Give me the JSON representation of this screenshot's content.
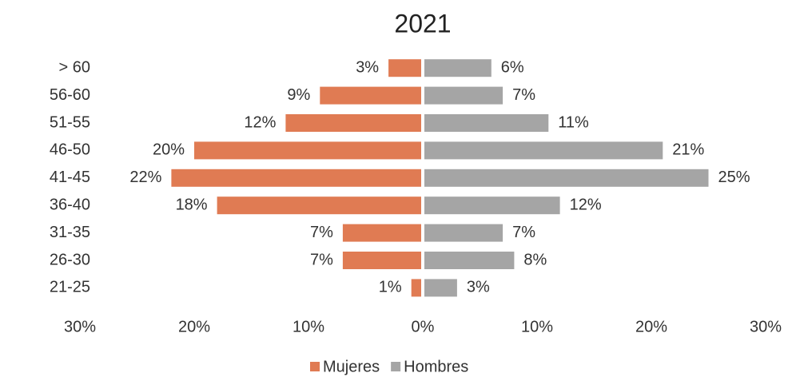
{
  "chart_data": {
    "type": "pyramid",
    "title": "2021",
    "categories": [
      "> 60",
      "56-60",
      "51-55",
      "46-50",
      "41-45",
      "36-40",
      "31-35",
      "26-30",
      "21-25"
    ],
    "series": [
      {
        "name": "Mujeres",
        "color": "#e07b53",
        "side": "left",
        "values": [
          3,
          9,
          12,
          20,
          22,
          18,
          7,
          7,
          1
        ],
        "value_labels": [
          "3%",
          "9%",
          "12%",
          "20%",
          "22%",
          "18%",
          "7%",
          "7%",
          "1%"
        ]
      },
      {
        "name": "Hombres",
        "color": "#a5a5a5",
        "side": "right",
        "values": [
          6,
          7,
          11,
          21,
          25,
          12,
          7,
          8,
          3
        ],
        "value_labels": [
          "6%",
          "7%",
          "11%",
          "21%",
          "25%",
          "12%",
          "7%",
          "8%",
          "3%"
        ]
      }
    ],
    "xlim": [
      -30,
      30
    ],
    "xticks": [
      {
        "value": -30,
        "label": "30%"
      },
      {
        "value": -20,
        "label": "20%"
      },
      {
        "value": -10,
        "label": "10%"
      },
      {
        "value": 0,
        "label": "0%"
      },
      {
        "value": 10,
        "label": "10%"
      },
      {
        "value": 20,
        "label": "20%"
      },
      {
        "value": 30,
        "label": "30%"
      }
    ],
    "legend": "bottom"
  }
}
